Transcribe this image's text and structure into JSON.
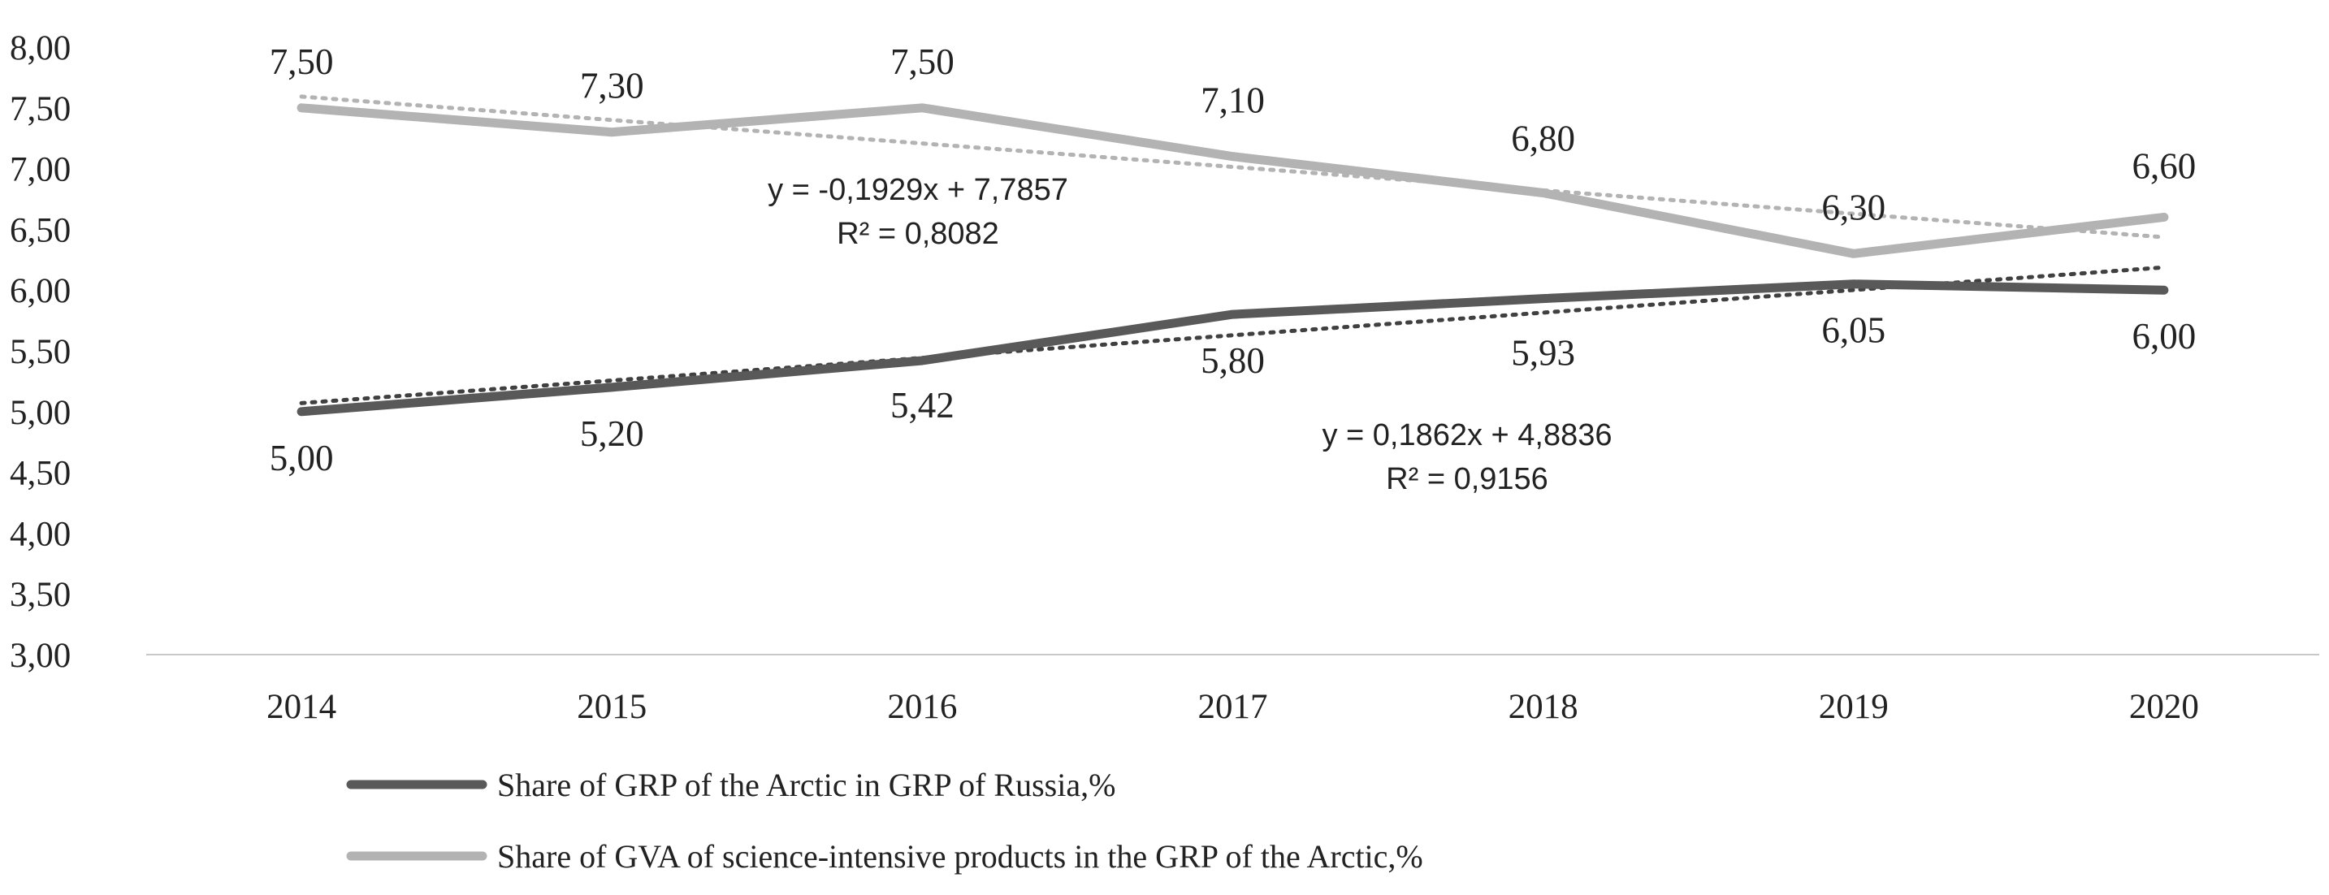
{
  "chart_data": {
    "type": "line",
    "title": "",
    "xlabel": "",
    "ylabel": "",
    "categories": [
      "2014",
      "2015",
      "2016",
      "2017",
      "2018",
      "2019",
      "2020"
    ],
    "ylim": [
      3.0,
      8.0
    ],
    "y_ticks": [
      "3,00",
      "3,50",
      "4,00",
      "4,50",
      "5,00",
      "5,50",
      "6,00",
      "6,50",
      "7,00",
      "7,50",
      "8,00"
    ],
    "grid": false,
    "legend_position": "bottom",
    "series": [
      {
        "name": "Share of GRP of the Arctic in GRP of Russia,%",
        "color": "#595959",
        "values": [
          5.0,
          5.2,
          5.42,
          5.8,
          5.93,
          6.05,
          6.0
        ],
        "labels": [
          "5,00",
          "5,20",
          "5,42",
          "5,80",
          "5,93",
          "6,05",
          "6,00"
        ],
        "trendline": {
          "slope": 0.1862,
          "intercept": 4.8836,
          "equation": "y = 0,1862x + 4,8836",
          "r2": "R² = 0,9156",
          "color": "#404040"
        }
      },
      {
        "name": "Share of GVA of science-intensive products in the GRP of the Arctic,%",
        "color": "#b3b3b3",
        "values": [
          7.5,
          7.3,
          7.5,
          7.1,
          6.8,
          6.3,
          6.6
        ],
        "labels": [
          "7,50",
          "7,30",
          "7,50",
          "7,10",
          "6,80",
          "6,30",
          "6,60"
        ],
        "trendline": {
          "slope": -0.1929,
          "intercept": 7.7857,
          "equation": "y = -0,1929x + 7,7857",
          "r2": "R² = 0,8082",
          "color": "#b3b3b3"
        }
      }
    ]
  }
}
